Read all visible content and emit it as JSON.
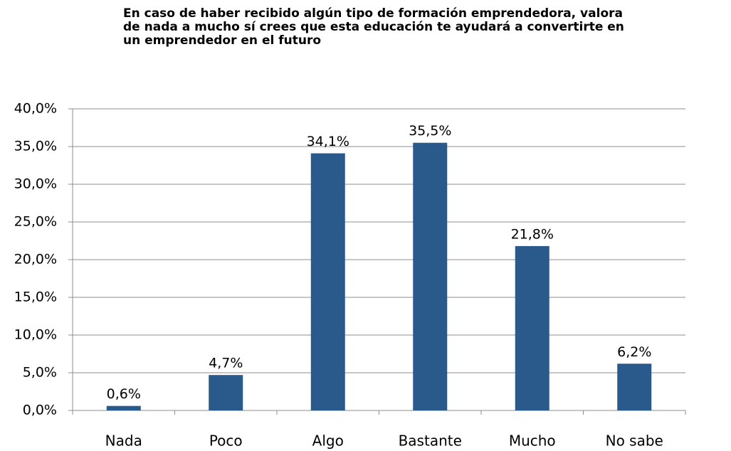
{
  "chart_data": {
    "type": "bar",
    "title": [
      "En caso de haber recibido algún tipo de formación emprendedora, valora",
      "de nada a mucho sí crees que esta educación te ayudará a convertirte en",
      "un emprendedor en el futuro"
    ],
    "categories": [
      "Nada",
      "Poco",
      "Algo",
      "Bastante",
      "Mucho",
      "No sabe"
    ],
    "values": [
      0.6,
      4.7,
      34.1,
      35.5,
      21.8,
      6.2
    ],
    "value_labels": [
      "0,6%",
      "4,7%",
      "34,1%",
      "35,5%",
      "21,8%",
      "6,2%"
    ],
    "color": "#2a5a8c",
    "ylim": [
      0,
      40
    ],
    "yticks": [
      {
        "value": 0,
        "label": "0,0%"
      },
      {
        "value": 5,
        "label": "5,0%"
      },
      {
        "value": 10,
        "label": "10,0%"
      },
      {
        "value": 15,
        "label": "15,0%"
      },
      {
        "value": 20,
        "label": "20,0%"
      },
      {
        "value": 25,
        "label": "25,0%"
      },
      {
        "value": 30,
        "label": "30,0%"
      },
      {
        "value": 35,
        "label": "35,0%"
      },
      {
        "value": 40,
        "label": "40,0%"
      }
    ],
    "grid": true
  }
}
